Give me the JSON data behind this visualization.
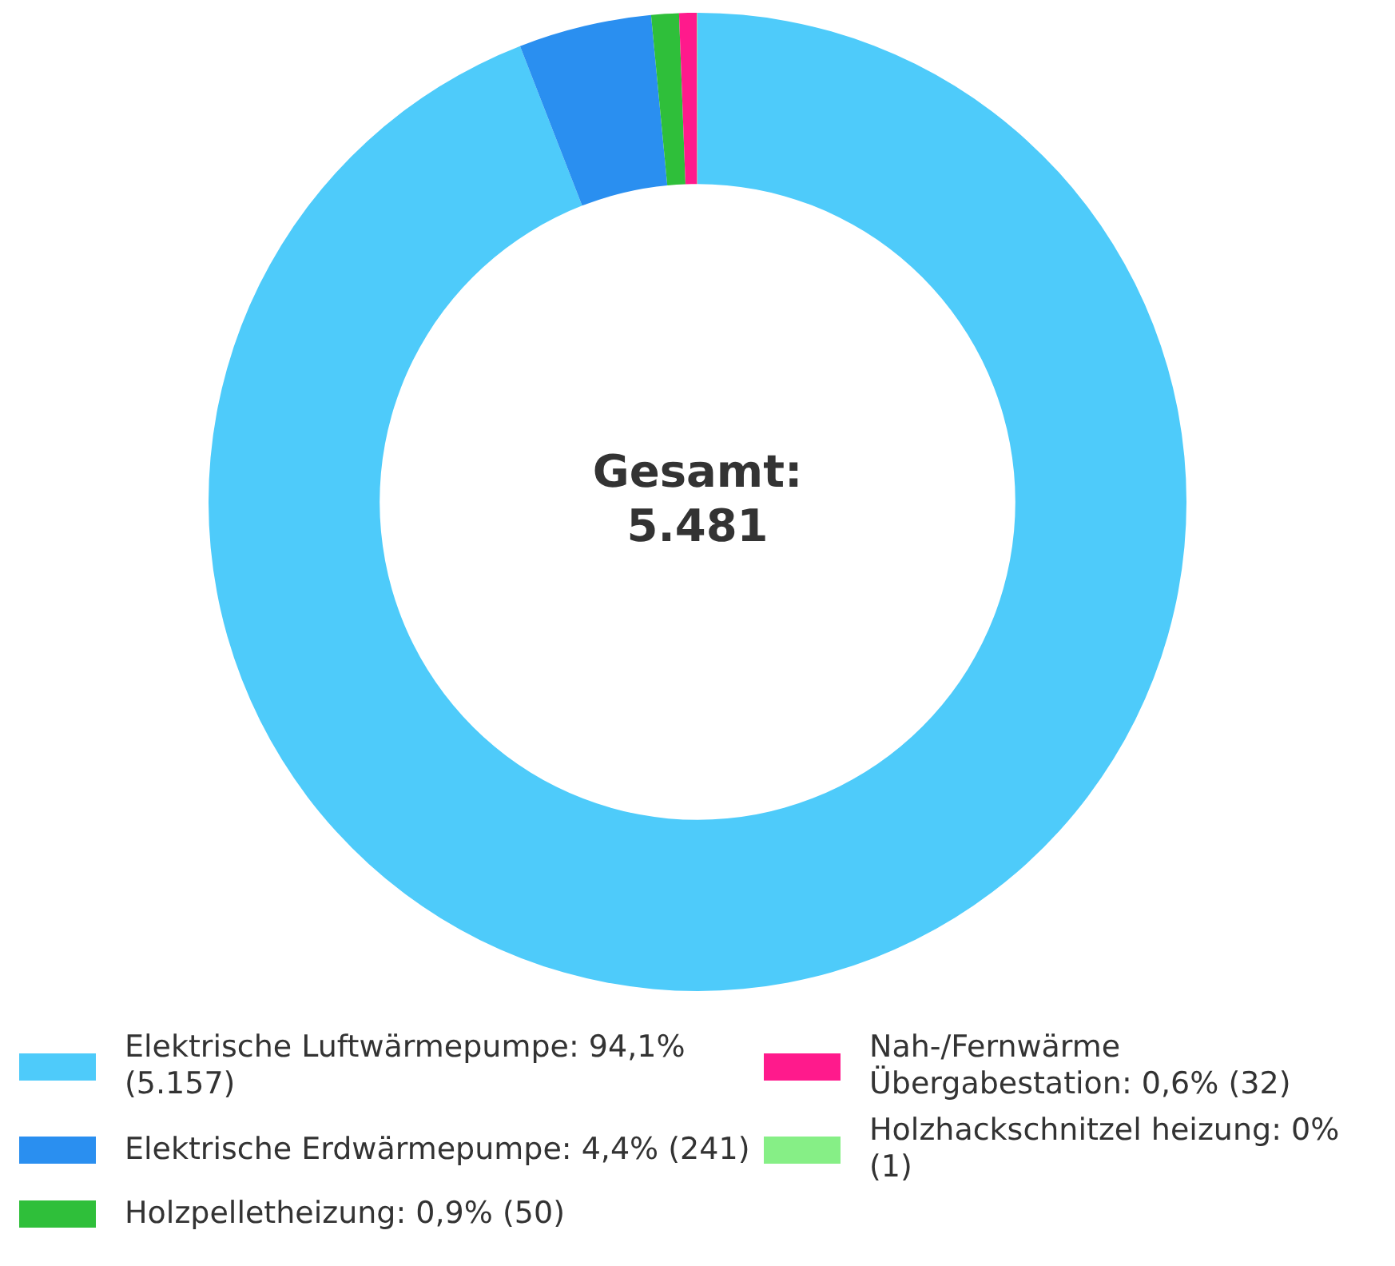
{
  "chart_data": {
    "type": "donut",
    "categories": [
      "Elektrische Luftwärmepumpe: 94,1% (5.157)",
      "Elektrische Erdwärmepumpe: 4,4% (241)",
      "Holzpelletheizung: 0,9% (50)",
      "Nah-/Fernwärme Übergabestation: 0,6% (32)",
      "Holzhackschnitzel heizung: 0% (1)"
    ],
    "values": [
      5157,
      241,
      50,
      32,
      1
    ],
    "colors": [
      "#4ecbfa",
      "#2a8ff0",
      "#2fbf3a",
      "#ff1a8c",
      "#86ef86"
    ],
    "annotations": [
      "Gesamt: 5.481"
    ],
    "legend": "bottom"
  }
}
